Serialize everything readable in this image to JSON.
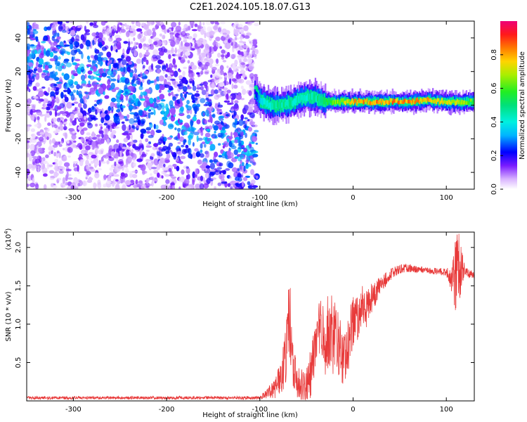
{
  "title": "C2E1.2024.105.18.07.G13",
  "chart_data": [
    {
      "type": "heatmap",
      "name": "spectrogram",
      "xlabel": "Height of straight line (km)",
      "ylabel": "Frequency (Hz)",
      "xlim": [
        -350,
        130
      ],
      "ylim": [
        -50,
        50
      ],
      "x_ticks": [
        -300,
        -200,
        -100,
        0,
        100
      ],
      "y_ticks": [
        -40,
        -20,
        0,
        20,
        40
      ],
      "colorbar": {
        "label": "Normalized spectral amplitude",
        "range": [
          0.0,
          1.0
        ],
        "ticks": [
          0.0,
          0.2,
          0.4,
          0.6,
          0.8
        ]
      },
      "noise_region_x": [
        -350,
        -103
      ],
      "diagonal_band": {
        "x_start": -350,
        "f_start": 35,
        "x_end": -103,
        "f_end": -30
      },
      "signal_track": {
        "x": [
          -106,
          -100,
          -90,
          -80,
          -70,
          -60,
          -50,
          -40,
          -30,
          -20,
          -10,
          0,
          20,
          40,
          60,
          80,
          100,
          120,
          130
        ],
        "f": [
          8,
          3,
          0,
          0,
          1,
          3,
          5,
          4,
          2,
          2,
          2,
          2,
          2,
          2,
          2,
          3,
          2,
          2,
          2
        ],
        "amp": [
          0.2,
          0.35,
          0.45,
          0.5,
          0.5,
          0.45,
          0.45,
          0.5,
          0.55,
          0.65,
          0.75,
          0.8,
          0.85,
          0.85,
          0.85,
          0.8,
          0.75,
          0.7,
          0.6
        ]
      }
    },
    {
      "type": "line",
      "name": "snr",
      "xlabel": "Height of straight line (km)",
      "ylabel": "SNR (10 * v/v)",
      "y_multiplier": "(x10",
      "y_multiplier_exp": "4",
      "y_multiplier_close": ")",
      "xlim": [
        -350,
        130
      ],
      "ylim": [
        0,
        22000
      ],
      "x_ticks": [
        -300,
        -200,
        -100,
        0,
        100
      ],
      "y_ticks": [
        5000,
        10000,
        15000,
        20000
      ],
      "y_tick_labels": [
        "0.5",
        "1.0",
        "1.5",
        "2.0"
      ],
      "color": "#e83a3a",
      "envelope": {
        "x": [
          -350,
          -100,
          -85,
          -80,
          -72,
          -68,
          -65,
          -60,
          -50,
          -45,
          -40,
          -35,
          -30,
          -25,
          -20,
          -15,
          -10,
          -5,
          0,
          5,
          10,
          15,
          20,
          30,
          40,
          50,
          60,
          80,
          100,
          105,
          110,
          113,
          120,
          130
        ],
        "y": [
          400,
          400,
          1500,
          2500,
          6000,
          11000,
          5000,
          2500,
          1500,
          4000,
          8000,
          9000,
          8000,
          9500,
          8000,
          7000,
          5000,
          8000,
          10000,
          11000,
          12500,
          12000,
          13500,
          15000,
          16500,
          17200,
          17300,
          17000,
          16800,
          16500,
          16500,
          17500,
          16800,
          16400
        ],
        "spread": [
          200,
          200,
          1200,
          2000,
          4000,
          6000,
          3000,
          2000,
          2500,
          3500,
          4000,
          5000,
          5000,
          5000,
          5000,
          4500,
          3500,
          4000,
          3500,
          3000,
          2500,
          2500,
          2000,
          1200,
          800,
          600,
          500,
          400,
          500,
          2000,
          5000,
          5000,
          600,
          500
        ]
      }
    }
  ]
}
